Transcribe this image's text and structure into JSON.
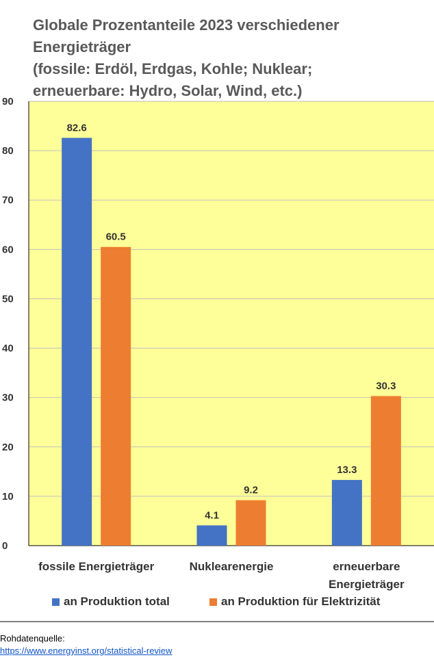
{
  "chart_data": {
    "type": "bar",
    "title_lines": [
      "Globale Prozentanteile 2023 verschiedener",
      "Energieträger",
      "(fossile: Erdöl, Erdgas, Kohle; Nuklear;",
      "erneuerbare: Hydro, Solar, Wind,  etc.)"
    ],
    "categories": [
      [
        "fossile Energieträger"
      ],
      [
        "Nuklearenergie"
      ],
      [
        "erneuerbare",
        "Energieträger"
      ]
    ],
    "series": [
      {
        "name": "an Produktion total",
        "values": [
          82.6,
          4.1,
          13.3
        ],
        "color": "#4472c4"
      },
      {
        "name": "an Produktion für Elektrizität",
        "values": [
          60.5,
          9.2,
          30.3
        ],
        "color": "#ed7d31"
      }
    ],
    "data_labels": [
      [
        "82.6",
        "4.1",
        "13.3"
      ],
      [
        "60.5",
        "9.2",
        "30.3"
      ]
    ],
    "ylim": [
      0,
      90
    ],
    "yticks": [
      "0",
      "10",
      "20",
      "30",
      "40",
      "50",
      "60",
      "70",
      "80",
      "90"
    ],
    "grid": true,
    "legend_position": "bottom",
    "plot_background": "#ffff99"
  },
  "source": {
    "label": "Rohdatenquelle:",
    "link": "https://www.energyinst.org/statistical-review"
  }
}
